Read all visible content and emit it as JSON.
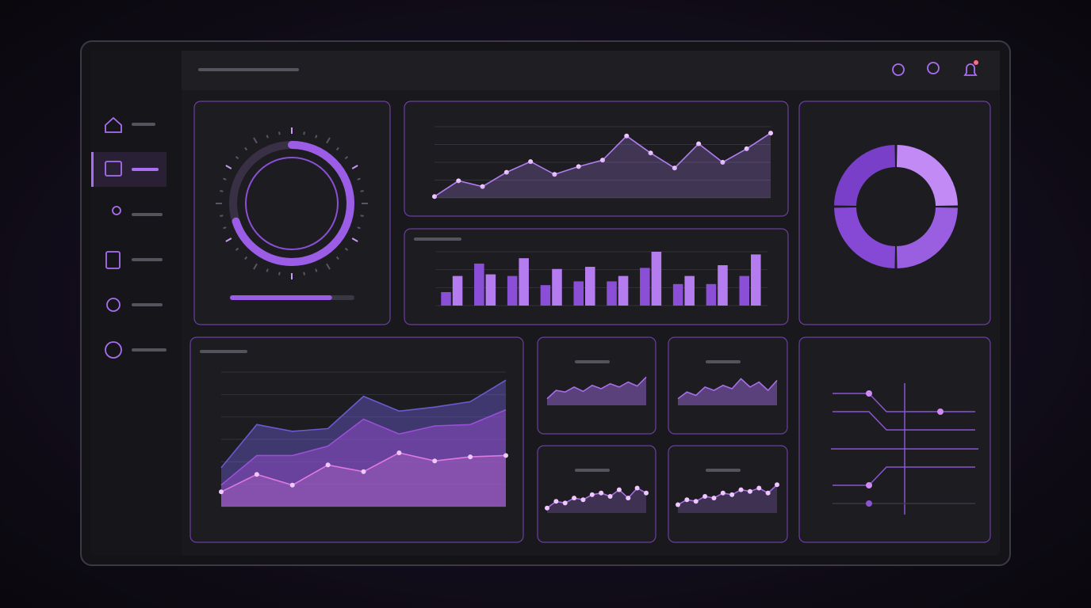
{
  "chart_data": [
    {
      "type": "gauge",
      "values": [
        70,
        82
      ],
      "ylim": [
        0,
        100
      ],
      "color": "#9b5de5"
    },
    {
      "type": "line",
      "ylim": [
        0,
        100
      ],
      "series": [
        {
          "color": "#b07ef0",
          "values": [
            2,
            24,
            16,
            36,
            51,
            33,
            44,
            53,
            87,
            63,
            42,
            76,
            50,
            69,
            91
          ]
        }
      ]
    },
    {
      "type": "bar",
      "ylim": [
        0,
        100
      ],
      "series": [
        {
          "color": "#8a4fd6",
          "values": [
            25,
            78,
            55,
            38,
            45,
            45,
            70,
            40,
            40,
            55
          ]
        },
        {
          "color": "#b57cf0",
          "values": [
            55,
            58,
            88,
            68,
            72,
            55,
            100,
            55,
            75,
            95
          ]
        }
      ]
    },
    {
      "type": "pie",
      "values": [
        25,
        25,
        25,
        25
      ],
      "colors": [
        "#c28af5",
        "#9a5ee0",
        "#8549d6",
        "#7a3fc8"
      ]
    },
    {
      "type": "area",
      "ylim": [
        0,
        100
      ],
      "series": [
        {
          "color": "#6a5acd",
          "values": [
            29,
            61,
            56,
            58,
            82,
            71,
            74,
            78,
            94
          ]
        },
        {
          "color": "#9b4fd8",
          "values": [
            16,
            38,
            38,
            45,
            65,
            54,
            60,
            61,
            72
          ]
        },
        {
          "color": "#e07ae0",
          "markers": true,
          "values": [
            11,
            24,
            16,
            31,
            26,
            40,
            34,
            37,
            38
          ]
        }
      ]
    },
    {
      "type": "area",
      "ylim": [
        0,
        100
      ],
      "series": [
        {
          "color": "#a66ee8",
          "values": [
            20,
            45,
            40,
            55,
            42,
            60,
            50,
            65,
            55,
            70,
            58,
            85
          ]
        }
      ]
    },
    {
      "type": "area",
      "ylim": [
        0,
        100
      ],
      "series": [
        {
          "color": "#a66ee8",
          "values": [
            20,
            40,
            30,
            55,
            45,
            60,
            50,
            80,
            55,
            70,
            45,
            75
          ]
        }
      ]
    },
    {
      "type": "area",
      "ylim": [
        0,
        100
      ],
      "series": [
        {
          "color": "#a66ee8",
          "markers": true,
          "values": [
            15,
            35,
            30,
            45,
            40,
            55,
            60,
            50,
            70,
            45,
            75,
            60
          ]
        }
      ]
    },
    {
      "type": "area",
      "ylim": [
        0,
        100
      ],
      "series": [
        {
          "color": "#a66ee8",
          "markers": true,
          "values": [
            25,
            40,
            35,
            50,
            45,
            60,
            55,
            70,
            65,
            75,
            60,
            85
          ]
        }
      ]
    }
  ]
}
